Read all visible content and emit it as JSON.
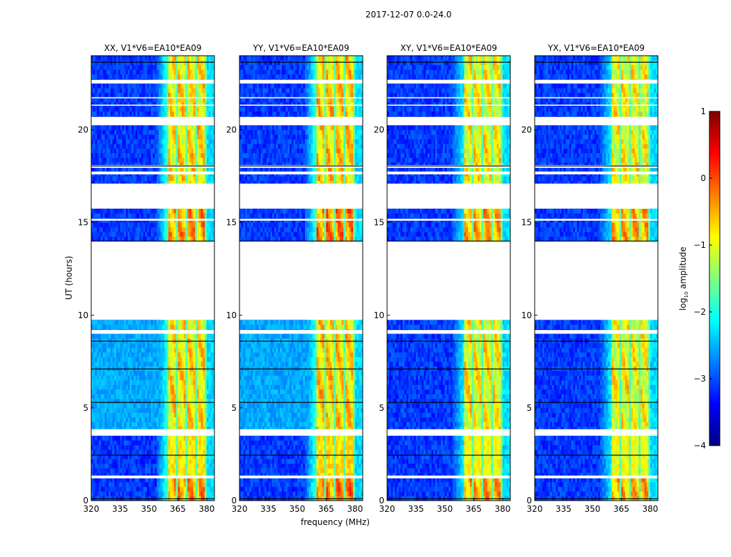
{
  "chart_data": {
    "type": "heatmap",
    "title": "2017-12-07 0.0-24.0",
    "xlabel": "frequency (MHz)",
    "ylabel": "UT (hours)",
    "xlim": [
      320,
      384
    ],
    "ylim": [
      0,
      24
    ],
    "xticks": [
      320,
      335,
      350,
      365,
      380
    ],
    "yticks": [
      0,
      5,
      10,
      15,
      20
    ],
    "panels": [
      {
        "title": "XX, V1*V6=EA10*EA09",
        "pol": "XX",
        "bright_level": 0.0
      },
      {
        "title": "YY, V1*V6=EA10*EA09",
        "pol": "YY",
        "bright_level": 0.1
      },
      {
        "title": "XY, V1*V6=EA10*EA09",
        "pol": "XY",
        "bright_level": -0.1
      },
      {
        "title": "YX, V1*V6=EA10*EA09",
        "pol": "YX",
        "bright_level": -0.15
      }
    ],
    "colorbar": {
      "label": "log10 amplitude",
      "label_main": "log",
      "label_sub": "10",
      "label_rest": " amplitude",
      "range": [
        -4,
        1
      ],
      "ticks": [
        1,
        0,
        -1,
        -2,
        -3,
        -4
      ],
      "colormap": "jet"
    },
    "background_level": -3.1,
    "bright_channels_mhz": [
      [
        360,
        364
      ],
      [
        365,
        369
      ],
      [
        370,
        374
      ],
      [
        375,
        379
      ]
    ],
    "no_data_hours": [
      [
        1.2,
        1.35
      ],
      [
        3.5,
        3.85
      ],
      [
        9.0,
        9.2
      ],
      [
        9.75,
        14.0
      ],
      [
        15.1,
        15.2
      ],
      [
        15.75,
        17.1
      ],
      [
        17.6,
        17.75
      ],
      [
        17.95,
        18.1
      ],
      [
        20.25,
        20.7
      ],
      [
        21.3,
        21.36
      ],
      [
        21.7,
        21.76
      ],
      [
        22.5,
        22.7
      ]
    ],
    "dark_rows_hours": [
      0.1,
      2.45,
      5.3,
      7.1,
      8.6,
      14.0,
      18.05,
      23.65
    ]
  }
}
